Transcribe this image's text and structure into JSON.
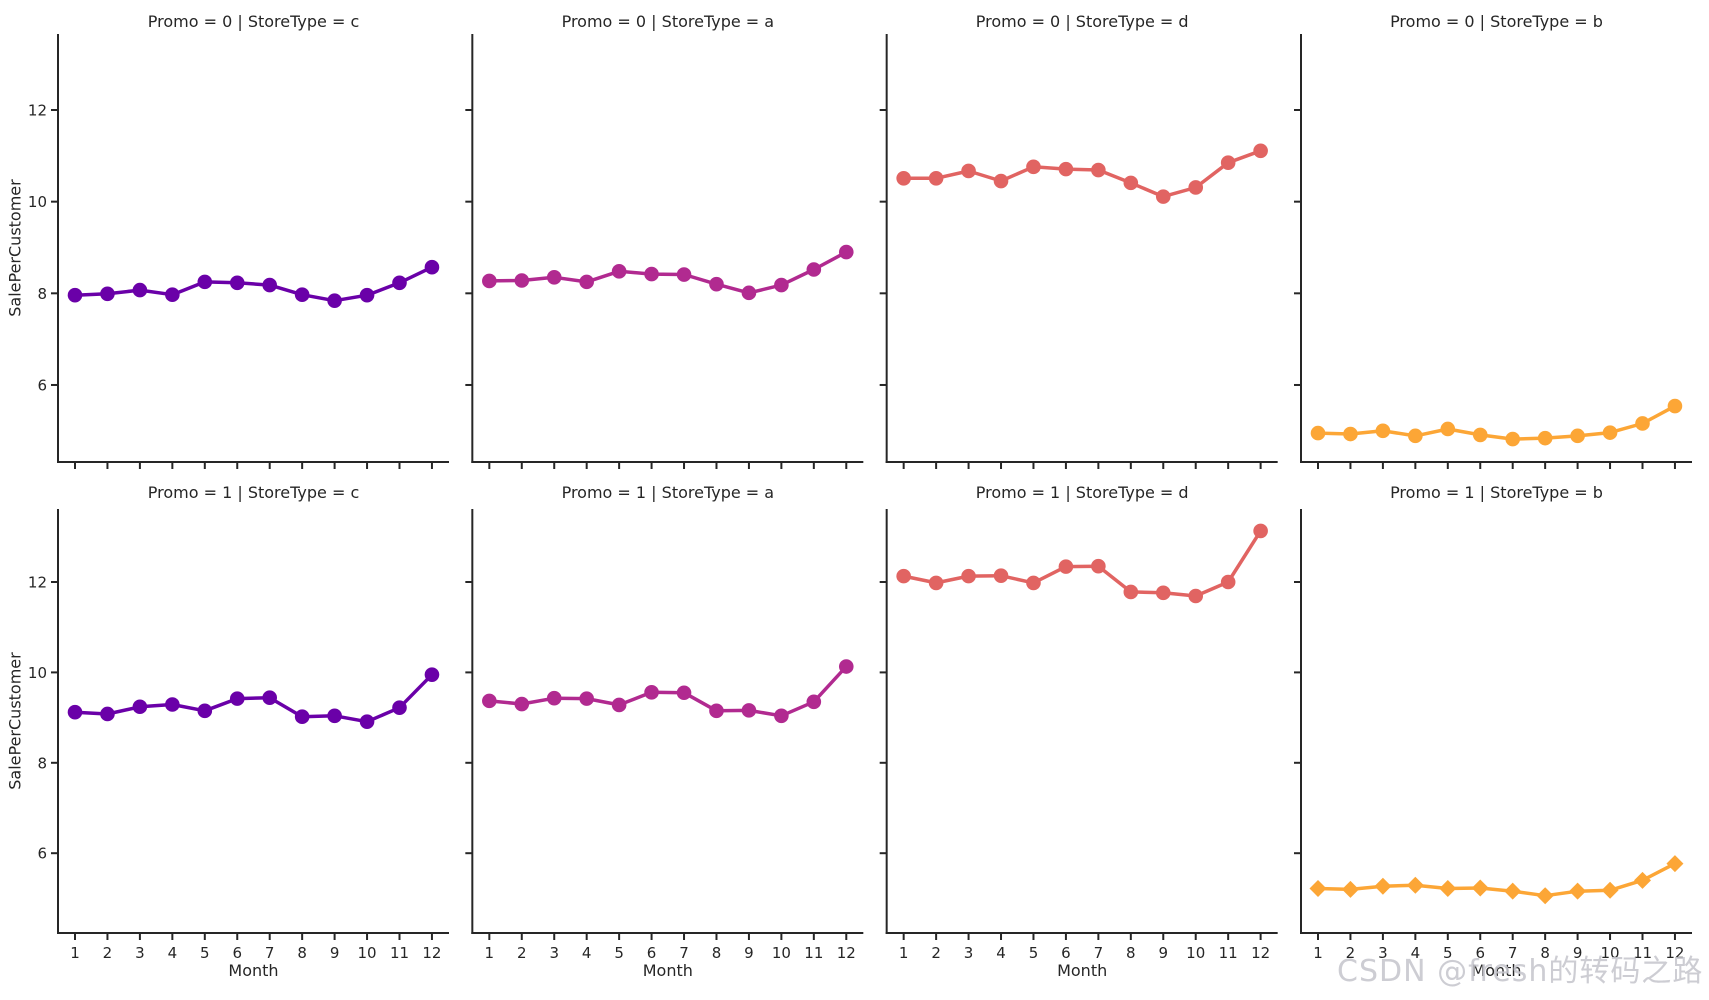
{
  "figure": {
    "background": "#ffffff"
  },
  "watermark": "CSDN @fresh的转码之路",
  "chart_data": {
    "type": "line",
    "facet_grid": {
      "row_variable": "Promo",
      "col_variable": "StoreType",
      "row_values": [
        "0",
        "1"
      ],
      "col_values": [
        "c",
        "a",
        "d",
        "b"
      ]
    },
    "xlabel": "Month",
    "ylabel": "SalePerCustomer",
    "x": [
      1,
      2,
      3,
      4,
      5,
      6,
      7,
      8,
      9,
      10,
      11,
      12
    ],
    "x_tick_labels": [
      "1",
      "2",
      "3",
      "4",
      "5",
      "6",
      "7",
      "8",
      "9",
      "10",
      "11",
      "12"
    ],
    "y_ticks": [
      6,
      8,
      10,
      12
    ],
    "y_tick_labels": [
      "6",
      "8",
      "10",
      "12"
    ],
    "ylim": [
      4.3,
      13.65
    ],
    "grid": false,
    "legend": "none",
    "palette": {
      "c": "#6a00a8",
      "a": "#b12a90",
      "d": "#e16462",
      "b": "#fca636"
    },
    "facets": [
      {
        "promo": 0,
        "store_type": "c",
        "title": "Promo = 0 | StoreType = c",
        "color": "#6a00a8",
        "marker": "circle",
        "values": [
          7.96,
          7.99,
          8.07,
          7.97,
          8.25,
          8.23,
          8.18,
          7.97,
          7.84,
          7.96,
          8.23,
          8.57
        ]
      },
      {
        "promo": 0,
        "store_type": "a",
        "title": "Promo = 0 | StoreType = a",
        "color": "#b12a90",
        "marker": "circle",
        "values": [
          8.27,
          8.28,
          8.35,
          8.25,
          8.48,
          8.42,
          8.41,
          8.2,
          8.01,
          8.18,
          8.52,
          8.9
        ]
      },
      {
        "promo": 0,
        "store_type": "d",
        "title": "Promo = 0 | StoreType = d",
        "color": "#e16462",
        "marker": "circle",
        "values": [
          10.51,
          10.51,
          10.67,
          10.45,
          10.76,
          10.71,
          10.69,
          10.41,
          10.11,
          10.31,
          10.85,
          11.11
        ]
      },
      {
        "promo": 0,
        "store_type": "b",
        "title": "Promo = 0 | StoreType = b",
        "color": "#fca636",
        "marker": "circle",
        "values": [
          4.95,
          4.93,
          5.0,
          4.89,
          5.04,
          4.91,
          4.82,
          4.84,
          4.89,
          4.96,
          5.16,
          5.54
        ]
      },
      {
        "promo": 1,
        "store_type": "c",
        "title": "Promo = 1 | StoreType = c",
        "color": "#6a00a8",
        "marker": "circle",
        "values": [
          9.12,
          9.08,
          9.24,
          9.29,
          9.15,
          9.42,
          9.44,
          9.02,
          9.04,
          8.91,
          9.22,
          9.95
        ]
      },
      {
        "promo": 1,
        "store_type": "a",
        "title": "Promo = 1 | StoreType = a",
        "color": "#b12a90",
        "marker": "circle",
        "values": [
          9.37,
          9.3,
          9.43,
          9.42,
          9.28,
          9.56,
          9.55,
          9.15,
          9.16,
          9.04,
          9.35,
          10.13
        ]
      },
      {
        "promo": 1,
        "store_type": "d",
        "title": "Promo = 1 | StoreType = d",
        "color": "#e16462",
        "marker": "circle",
        "values": [
          12.13,
          11.98,
          12.13,
          12.14,
          11.98,
          12.34,
          12.35,
          11.78,
          11.76,
          11.69,
          12.0,
          13.13
        ]
      },
      {
        "promo": 1,
        "store_type": "b",
        "title": "Promo = 1 | StoreType = b",
        "color": "#fca636",
        "marker": "diamond",
        "values": [
          5.22,
          5.2,
          5.27,
          5.29,
          5.22,
          5.23,
          5.16,
          5.06,
          5.16,
          5.18,
          5.4,
          5.77
        ]
      }
    ]
  }
}
